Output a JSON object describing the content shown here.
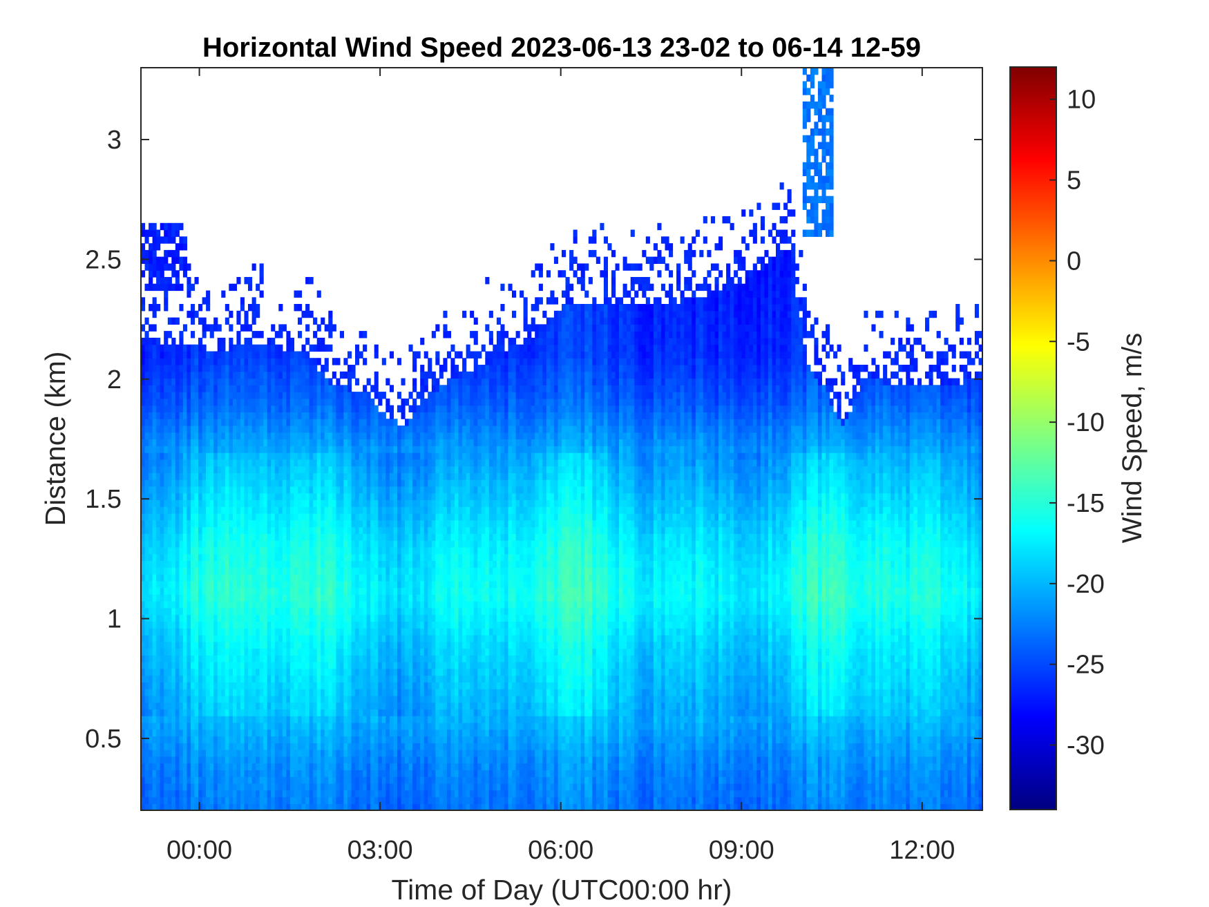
{
  "chart_data": {
    "type": "heatmap",
    "title": "Horizontal Wind Speed 2023-06-13 23-02 to 06-14 12-59",
    "xlabel": "Time of Day (UTC00:00 hr)",
    "ylabel": "Distance (km)",
    "colorbar_label": "Wind Speed, m/s",
    "x_unit": "hours relative to 2023-06-14 00:00 UTC",
    "xlim": [
      -0.97,
      13.0
    ],
    "ylim": [
      0.2,
      3.3
    ],
    "clim": [
      -34,
      12
    ],
    "colormap": "jet",
    "x_ticks": [
      {
        "value": 0,
        "label": "00:00"
      },
      {
        "value": 3,
        "label": "03:00"
      },
      {
        "value": 6,
        "label": "06:00"
      },
      {
        "value": 9,
        "label": "09:00"
      },
      {
        "value": 12,
        "label": "12:00"
      }
    ],
    "y_ticks": [
      {
        "value": 0.5,
        "label": "0.5"
      },
      {
        "value": 1,
        "label": "1"
      },
      {
        "value": 1.5,
        "label": "1.5"
      },
      {
        "value": 2,
        "label": "2"
      },
      {
        "value": 2.5,
        "label": "2.5"
      },
      {
        "value": 3,
        "label": "3"
      }
    ],
    "colorbar_ticks": [
      {
        "value": 10,
        "label": "10"
      },
      {
        "value": 5,
        "label": "5"
      },
      {
        "value": 0,
        "label": "0"
      },
      {
        "value": -5,
        "label": "-5"
      },
      {
        "value": -10,
        "label": "-10"
      },
      {
        "value": -15,
        "label": "-15"
      },
      {
        "value": -20,
        "label": "-20"
      },
      {
        "value": -25,
        "label": "-25"
      },
      {
        "value": -30,
        "label": "-30"
      }
    ],
    "data_top_km": {
      "times": [
        -0.97,
        -0.3,
        0.3,
        1.0,
        1.8,
        2.2,
        2.8,
        3.0,
        3.4,
        3.7,
        4.2,
        5.0,
        5.7,
        6.0,
        7.0,
        8.0,
        9.0,
        9.8,
        10.1,
        10.4,
        10.7,
        11.0,
        12.0,
        13.0
      ],
      "tops": [
        2.15,
        2.15,
        2.12,
        2.15,
        2.1,
        1.97,
        1.95,
        1.87,
        1.8,
        1.92,
        2.0,
        2.1,
        2.2,
        2.3,
        2.32,
        2.32,
        2.4,
        2.55,
        2.05,
        1.95,
        1.8,
        2.0,
        1.97,
        2.0
      ]
    },
    "wind_speed_profile": {
      "distance_km": [
        0.2,
        0.4,
        0.6,
        0.9,
        1.1,
        1.3,
        1.5,
        1.7,
        1.9,
        2.1,
        2.6,
        3.3
      ],
      "wind_speed": [
        -23,
        -22,
        -20,
        -18,
        -16,
        -17,
        -19,
        -21,
        -24,
        -26,
        -27,
        -27
      ]
    },
    "sparse_patches": [
      {
        "t0": -0.97,
        "t1": -0.2,
        "d0": 2.38,
        "d1": 2.65,
        "wind_speed": -27
      },
      {
        "t0": 10.0,
        "t1": 10.5,
        "d0": 2.6,
        "d1": 3.3,
        "wind_speed": -23
      }
    ]
  }
}
